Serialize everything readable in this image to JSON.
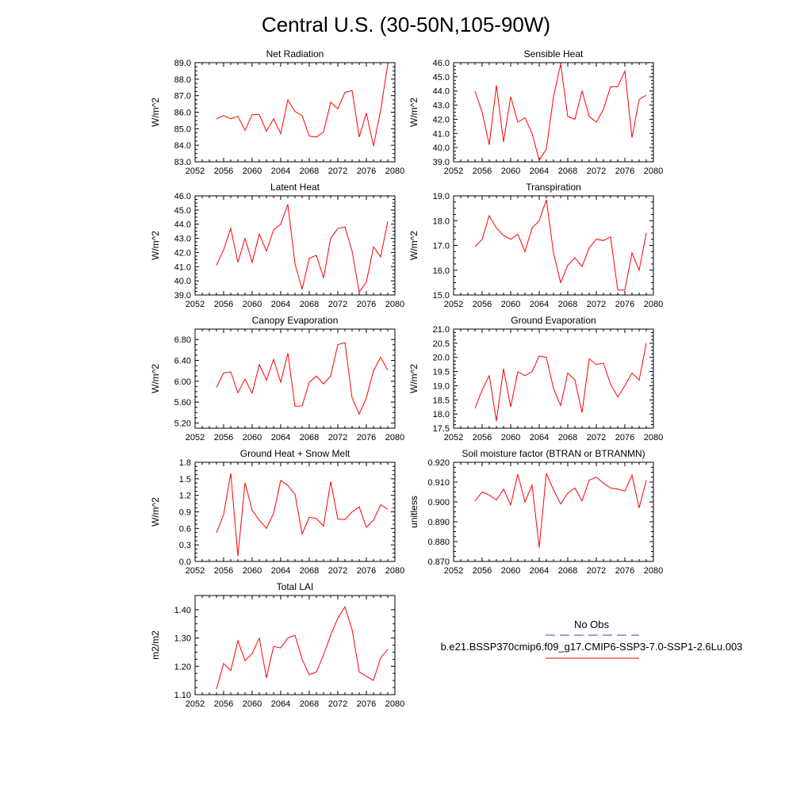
{
  "page": {
    "title": "Central U.S. (30-50N,105-90W)"
  },
  "colors": {
    "series": "#ff0000",
    "obs": "#3b3bbf",
    "axis": "#000000"
  },
  "legend": {
    "obs_label": "No Obs",
    "case_label": "b.e21.BSSP370cmip6.f09_g17.CMIP6-SSP3-7.0-SSP1-2.6Lu.003"
  },
  "chart_data": [
    {
      "type": "line",
      "title": "Net Radiation",
      "ylabel": "W/m^2",
      "xlim": [
        2052,
        2080
      ],
      "ylim": [
        83.0,
        89.0
      ],
      "xticks": [
        2052,
        2056,
        2060,
        2064,
        2068,
        2072,
        2076,
        2080
      ],
      "yticks": [
        "83.0",
        "84.0",
        "85.0",
        "86.0",
        "87.0",
        "88.0",
        "89.0"
      ],
      "x": [
        2055,
        2056,
        2057,
        2058,
        2059,
        2060,
        2061,
        2062,
        2063,
        2064,
        2065,
        2066,
        2067,
        2068,
        2069,
        2070,
        2071,
        2072,
        2073,
        2074,
        2075,
        2076,
        2077,
        2078,
        2079
      ],
      "values": [
        85.6,
        85.8,
        85.6,
        85.75,
        84.9,
        85.85,
        85.85,
        84.85,
        85.6,
        84.7,
        86.75,
        86.05,
        85.8,
        84.55,
        84.5,
        84.8,
        86.6,
        86.2,
        87.2,
        87.3,
        84.5,
        85.95,
        83.95,
        86.1,
        88.9
      ]
    },
    {
      "type": "line",
      "title": "Sensible Heat",
      "ylabel": "W/m^2",
      "xlim": [
        2052,
        2080
      ],
      "ylim": [
        39.0,
        46.0
      ],
      "xticks": [
        2052,
        2056,
        2060,
        2064,
        2068,
        2072,
        2076,
        2080
      ],
      "yticks": [
        "39.0",
        "40.0",
        "41.0",
        "42.0",
        "43.0",
        "44.0",
        "45.0",
        "46.0"
      ],
      "x": [
        2055,
        2056,
        2057,
        2058,
        2059,
        2060,
        2061,
        2062,
        2063,
        2064,
        2065,
        2066,
        2067,
        2068,
        2069,
        2070,
        2071,
        2072,
        2073,
        2074,
        2075,
        2076,
        2077,
        2078,
        2079
      ],
      "values": [
        44.0,
        42.5,
        40.2,
        44.4,
        40.4,
        43.6,
        41.8,
        42.1,
        41.0,
        39.1,
        39.9,
        43.6,
        45.9,
        42.2,
        42.0,
        44.0,
        42.2,
        41.8,
        42.7,
        44.3,
        44.3,
        45.4,
        40.7,
        43.4,
        43.7
      ]
    },
    {
      "type": "line",
      "title": "Latent Heat",
      "ylabel": "W/m^2",
      "xlim": [
        2052,
        2080
      ],
      "ylim": [
        39.0,
        46.0
      ],
      "xticks": [
        2052,
        2056,
        2060,
        2064,
        2068,
        2072,
        2076,
        2080
      ],
      "yticks": [
        "39.0",
        "40.0",
        "41.0",
        "42.0",
        "43.0",
        "44.0",
        "45.0",
        "46.0"
      ],
      "x": [
        2055,
        2056,
        2057,
        2058,
        2059,
        2060,
        2061,
        2062,
        2063,
        2064,
        2065,
        2066,
        2067,
        2068,
        2069,
        2070,
        2071,
        2072,
        2073,
        2074,
        2075,
        2076,
        2077,
        2078,
        2079
      ],
      "values": [
        41.1,
        42.2,
        43.7,
        41.3,
        43.0,
        41.3,
        43.3,
        42.1,
        43.6,
        44.0,
        45.4,
        41.2,
        39.4,
        41.6,
        41.8,
        40.2,
        43.0,
        43.7,
        43.8,
        42.1,
        39.2,
        39.9,
        42.4,
        41.7,
        44.2
      ]
    },
    {
      "type": "line",
      "title": "Transpiration",
      "ylabel": "W/m^2",
      "xlim": [
        2052,
        2080
      ],
      "ylim": [
        15.0,
        19.0
      ],
      "xticks": [
        2052,
        2056,
        2060,
        2064,
        2068,
        2072,
        2076,
        2080
      ],
      "yticks": [
        "15.0",
        "16.0",
        "17.0",
        "18.0",
        "19.0"
      ],
      "x": [
        2055,
        2056,
        2057,
        2058,
        2059,
        2060,
        2061,
        2062,
        2063,
        2064,
        2065,
        2066,
        2067,
        2068,
        2069,
        2070,
        2071,
        2072,
        2073,
        2074,
        2075,
        2076,
        2077,
        2078,
        2079
      ],
      "values": [
        16.95,
        17.25,
        18.2,
        17.7,
        17.4,
        17.25,
        17.45,
        16.75,
        17.7,
        18.0,
        18.85,
        16.7,
        15.5,
        16.2,
        16.5,
        16.15,
        16.9,
        17.25,
        17.2,
        17.35,
        15.2,
        15.2,
        16.7,
        16.0,
        17.5
      ]
    },
    {
      "type": "line",
      "title": "Canopy Evaporation",
      "ylabel": "W/m^2",
      "xlim": [
        2052,
        2080
      ],
      "ylim": [
        5.1,
        7.0
      ],
      "xticks": [
        2052,
        2056,
        2060,
        2064,
        2068,
        2072,
        2076,
        2080
      ],
      "yticks": [
        "5.20",
        "5.60",
        "6.00",
        "6.40",
        "6.80"
      ],
      "x": [
        2055,
        2056,
        2057,
        2058,
        2059,
        2060,
        2061,
        2062,
        2063,
        2064,
        2065,
        2066,
        2067,
        2068,
        2069,
        2070,
        2071,
        2072,
        2073,
        2074,
        2075,
        2076,
        2077,
        2078,
        2079
      ],
      "values": [
        5.88,
        6.16,
        6.18,
        5.78,
        6.04,
        5.77,
        6.32,
        6.02,
        6.42,
        5.98,
        6.54,
        5.52,
        5.53,
        5.98,
        6.1,
        5.95,
        6.1,
        6.7,
        6.74,
        5.68,
        5.37,
        5.68,
        6.2,
        6.46,
        6.21
      ]
    },
    {
      "type": "line",
      "title": "Ground Evaporation",
      "ylabel": "W/m^2",
      "xlim": [
        2052,
        2080
      ],
      "ylim": [
        17.5,
        21.0
      ],
      "xticks": [
        2052,
        2056,
        2060,
        2064,
        2068,
        2072,
        2076,
        2080
      ],
      "yticks": [
        "17.5",
        "18.0",
        "18.5",
        "19.0",
        "19.5",
        "20.0",
        "20.5",
        "21.0"
      ],
      "x": [
        2055,
        2056,
        2057,
        2058,
        2059,
        2060,
        2061,
        2062,
        2063,
        2064,
        2065,
        2066,
        2067,
        2068,
        2069,
        2070,
        2071,
        2072,
        2073,
        2074,
        2075,
        2076,
        2077,
        2078,
        2079
      ],
      "values": [
        18.2,
        18.85,
        19.35,
        17.75,
        19.6,
        18.25,
        19.5,
        19.35,
        19.5,
        20.05,
        20.0,
        18.9,
        18.3,
        19.45,
        19.2,
        18.05,
        19.95,
        19.75,
        19.8,
        19.05,
        18.6,
        19.0,
        19.45,
        19.2,
        20.5
      ]
    },
    {
      "type": "line",
      "title": "Ground Heat + Snow Melt",
      "ylabel": "W/m^2",
      "xlim": [
        2052,
        2080
      ],
      "ylim": [
        0.0,
        1.8
      ],
      "xticks": [
        2052,
        2056,
        2060,
        2064,
        2068,
        2072,
        2076,
        2080
      ],
      "yticks": [
        "0.0",
        "0.3",
        "0.6",
        "0.9",
        "1.2",
        "1.5",
        "1.8"
      ],
      "x": [
        2055,
        2056,
        2057,
        2058,
        2059,
        2060,
        2061,
        2062,
        2063,
        2064,
        2065,
        2066,
        2067,
        2068,
        2069,
        2070,
        2071,
        2072,
        2073,
        2074,
        2075,
        2076,
        2077,
        2078,
        2079
      ],
      "values": [
        0.52,
        0.85,
        1.6,
        0.1,
        1.43,
        0.93,
        0.75,
        0.6,
        0.87,
        1.47,
        1.38,
        1.22,
        0.5,
        0.8,
        0.78,
        0.64,
        1.45,
        0.77,
        0.76,
        0.9,
        0.99,
        0.62,
        0.75,
        1.03,
        0.95
      ]
    },
    {
      "type": "line",
      "title": "Soil moisture factor (BTRAN or BTRANMN)",
      "ylabel": "unitless",
      "xlim": [
        2052,
        2080
      ],
      "ylim": [
        0.87,
        0.92
      ],
      "xticks": [
        2052,
        2056,
        2060,
        2064,
        2068,
        2072,
        2076,
        2080
      ],
      "yticks": [
        "0.870",
        "0.880",
        "0.890",
        "0.900",
        "0.910",
        "0.920"
      ],
      "x": [
        2055,
        2056,
        2057,
        2058,
        2059,
        2060,
        2061,
        2062,
        2063,
        2064,
        2065,
        2066,
        2067,
        2068,
        2069,
        2070,
        2071,
        2072,
        2073,
        2074,
        2075,
        2076,
        2077,
        2078,
        2079
      ],
      "values": [
        0.9005,
        0.905,
        0.9035,
        0.901,
        0.9065,
        0.8985,
        0.914,
        0.9,
        0.9085,
        0.877,
        0.9145,
        0.906,
        0.899,
        0.9045,
        0.907,
        0.9005,
        0.911,
        0.9125,
        0.9095,
        0.907,
        0.9065,
        0.9055,
        0.9135,
        0.897,
        0.911
      ]
    },
    {
      "type": "line",
      "title": "Total LAI",
      "ylabel": "m2/m2",
      "xlim": [
        2052,
        2080
      ],
      "ylim": [
        1.1,
        1.45
      ],
      "xticks": [
        2052,
        2056,
        2060,
        2064,
        2068,
        2072,
        2076,
        2080
      ],
      "yticks": [
        "1.10",
        "1.20",
        "1.30",
        "1.40"
      ],
      "x": [
        2055,
        2056,
        2057,
        2058,
        2059,
        2060,
        2061,
        2062,
        2063,
        2064,
        2065,
        2066,
        2067,
        2068,
        2069,
        2070,
        2071,
        2072,
        2073,
        2074,
        2075,
        2076,
        2077,
        2078,
        2079
      ],
      "values": [
        1.12,
        1.21,
        1.185,
        1.29,
        1.22,
        1.245,
        1.3,
        1.16,
        1.27,
        1.265,
        1.3,
        1.31,
        1.225,
        1.17,
        1.18,
        1.24,
        1.31,
        1.37,
        1.41,
        1.33,
        1.18,
        1.165,
        1.15,
        1.23,
        1.26
      ]
    }
  ]
}
